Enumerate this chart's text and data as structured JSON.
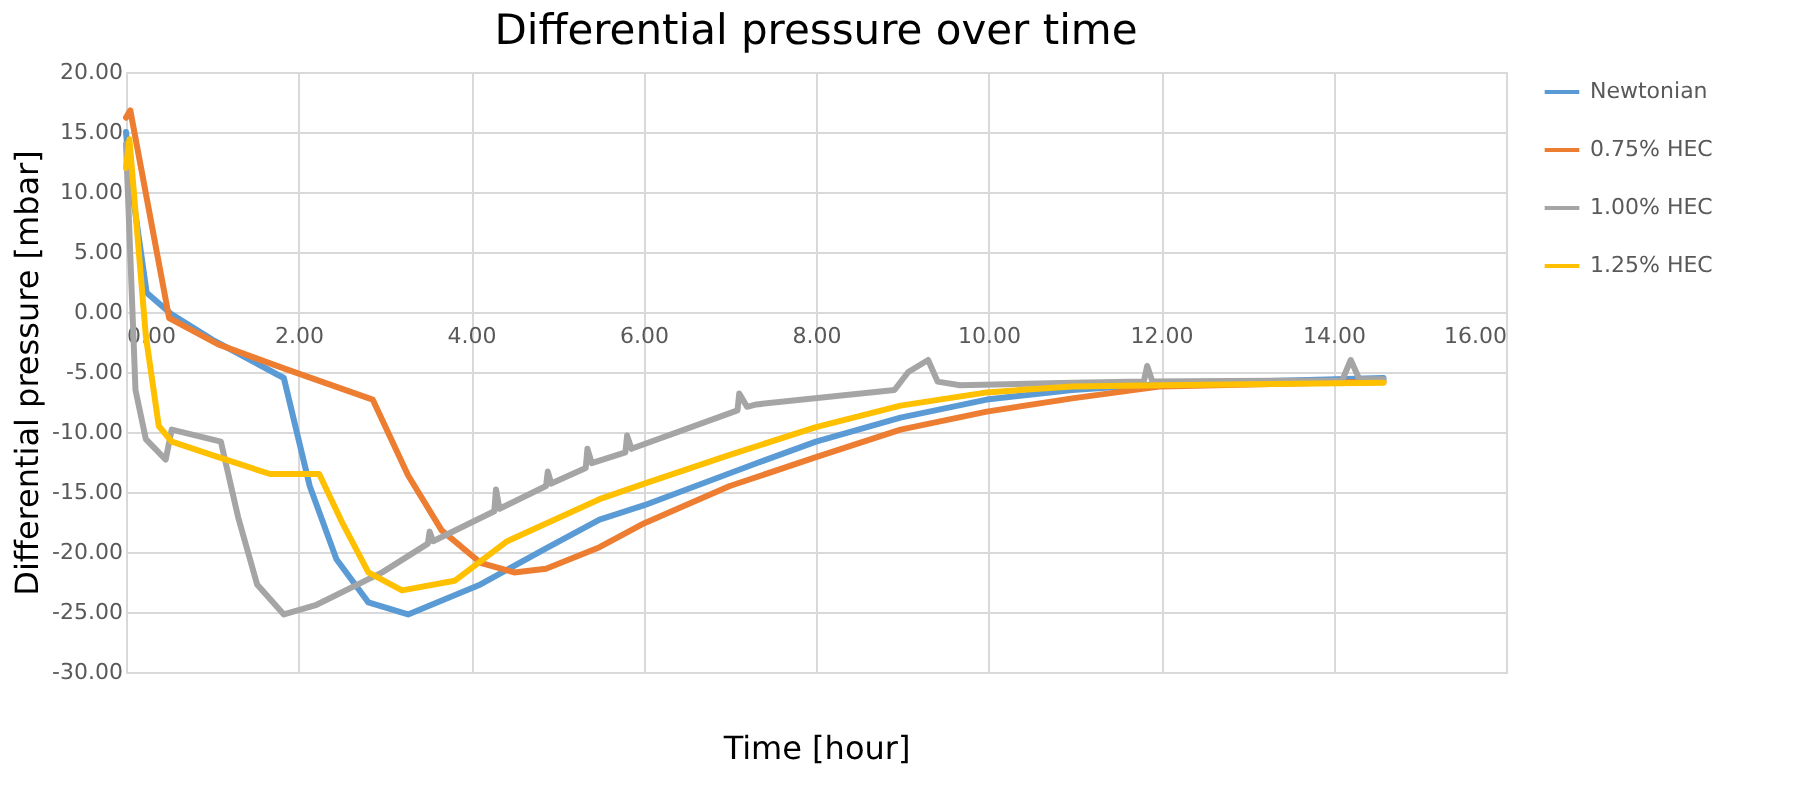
{
  "chart_data": {
    "type": "line",
    "title": "Differential pressure over time",
    "xlabel": "Time [hour]",
    "ylabel": "Differential pressure [mbar]",
    "xlim": [
      0,
      16
    ],
    "ylim": [
      -30,
      20
    ],
    "xticks": [
      {
        "value": 0,
        "label": "0.00"
      },
      {
        "value": 2,
        "label": "2.00"
      },
      {
        "value": 4,
        "label": "4.00"
      },
      {
        "value": 6,
        "label": "6.00"
      },
      {
        "value": 8,
        "label": "8.00"
      },
      {
        "value": 10,
        "label": "10.00"
      },
      {
        "value": 12,
        "label": "12.00"
      },
      {
        "value": 14,
        "label": "14.00"
      },
      {
        "value": 16,
        "label": "16.00"
      }
    ],
    "yticks": [
      {
        "value": -30,
        "label": "-30.00"
      },
      {
        "value": -25,
        "label": "-25.00"
      },
      {
        "value": -20,
        "label": "-20.00"
      },
      {
        "value": -15,
        "label": "-15.00"
      },
      {
        "value": -10,
        "label": "-10.00"
      },
      {
        "value": -5,
        "label": "-5.00"
      },
      {
        "value": 0,
        "label": "0.00"
      },
      {
        "value": 5,
        "label": "5.00"
      },
      {
        "value": 10,
        "label": "10.00"
      },
      {
        "value": 15,
        "label": "15.00"
      },
      {
        "value": 20,
        "label": "20.00"
      }
    ],
    "grid": true,
    "legend": "right",
    "marker": "none",
    "line_style": "solid",
    "series": [
      {
        "name": "Newtonian",
        "color": "#5b9bd5",
        "x": [
          0,
          0.04,
          0.24,
          0.53,
          1.0,
          1.83,
          2.13,
          2.44,
          2.81,
          3.27,
          4.11,
          4.87,
          5.49,
          6.01,
          7.31,
          8.0,
          8.98,
          9.98,
          10.97,
          12.0,
          14.58
        ],
        "values": [
          15,
          11.7,
          1.6,
          -0.2,
          -2.3,
          -5.5,
          -14.5,
          -20.6,
          -24.2,
          -25.2,
          -22.7,
          -19.7,
          -17.3,
          -16.1,
          -12.6,
          -10.8,
          -8.8,
          -7.3,
          -6.5,
          -6.0,
          -5.5
        ]
      },
      {
        "name": "0.75% HEC",
        "color": "#ed7d31",
        "x": [
          0,
          0.05,
          0.5,
          1.07,
          1.83,
          2.86,
          3.27,
          3.66,
          4.11,
          4.5,
          4.87,
          5.49,
          6.01,
          7.0,
          8.0,
          8.98,
          9.98,
          10.97,
          12.0,
          14.58
        ],
        "values": [
          16.2,
          16.8,
          -0.5,
          -2.7,
          -4.7,
          -7.3,
          -13.6,
          -18.2,
          -20.9,
          -21.7,
          -21.4,
          -19.6,
          -17.6,
          -14.5,
          -12.1,
          -9.8,
          -8.3,
          -7.2,
          -6.2,
          -5.8
        ]
      },
      {
        "name": "1.00% HEC",
        "color": "#a5a5a5",
        "x": [
          0,
          0.11,
          0.23,
          0.46,
          0.53,
          1.1,
          1.3,
          1.52,
          1.83,
          2.21,
          2.97,
          3.5,
          3.52,
          3.56,
          4.27,
          4.29,
          4.33,
          4.87,
          4.89,
          4.93,
          5.33,
          5.35,
          5.4,
          5.79,
          5.81,
          5.86,
          7.09,
          7.11,
          7.2,
          7.31,
          8.91,
          9.07,
          9.3,
          9.41,
          9.67,
          10.97,
          11.8,
          11.84,
          11.9,
          14.1,
          14.2,
          14.3,
          14.58
        ],
        "values": [
          14,
          -6.5,
          -10.6,
          -12.3,
          -9.8,
          -10.8,
          -17.1,
          -22.7,
          -25.2,
          -24.4,
          -21.7,
          -19.3,
          -18.3,
          -19.1,
          -16.6,
          -14.8,
          -16.4,
          -14.5,
          -13.3,
          -14.3,
          -13.0,
          -11.4,
          -12.6,
          -11.7,
          -10.3,
          -11.4,
          -8.2,
          -6.8,
          -7.9,
          -7.7,
          -6.5,
          -5.0,
          -4.0,
          -5.8,
          -6.1,
          -5.9,
          -5.8,
          -4.5,
          -5.8,
          -5.7,
          -4.0,
          -5.6,
          -5.6
        ]
      },
      {
        "name": "1.25% HEC",
        "color": "#ffc000",
        "x": [
          0,
          0.04,
          0.23,
          0.38,
          0.53,
          1.07,
          1.67,
          2.24,
          2.51,
          2.81,
          3.2,
          3.81,
          4.42,
          5.49,
          6.01,
          7.0,
          8.0,
          8.98,
          9.98,
          10.97,
          12.0,
          14.58
        ],
        "values": [
          12,
          14.4,
          -2.0,
          -9.5,
          -10.8,
          -12.1,
          -13.5,
          -13.5,
          -17.6,
          -21.7,
          -23.2,
          -22.4,
          -19.1,
          -15.6,
          -14.3,
          -11.9,
          -9.6,
          -7.8,
          -6.7,
          -6.2,
          -6.1,
          -5.9
        ]
      }
    ]
  }
}
